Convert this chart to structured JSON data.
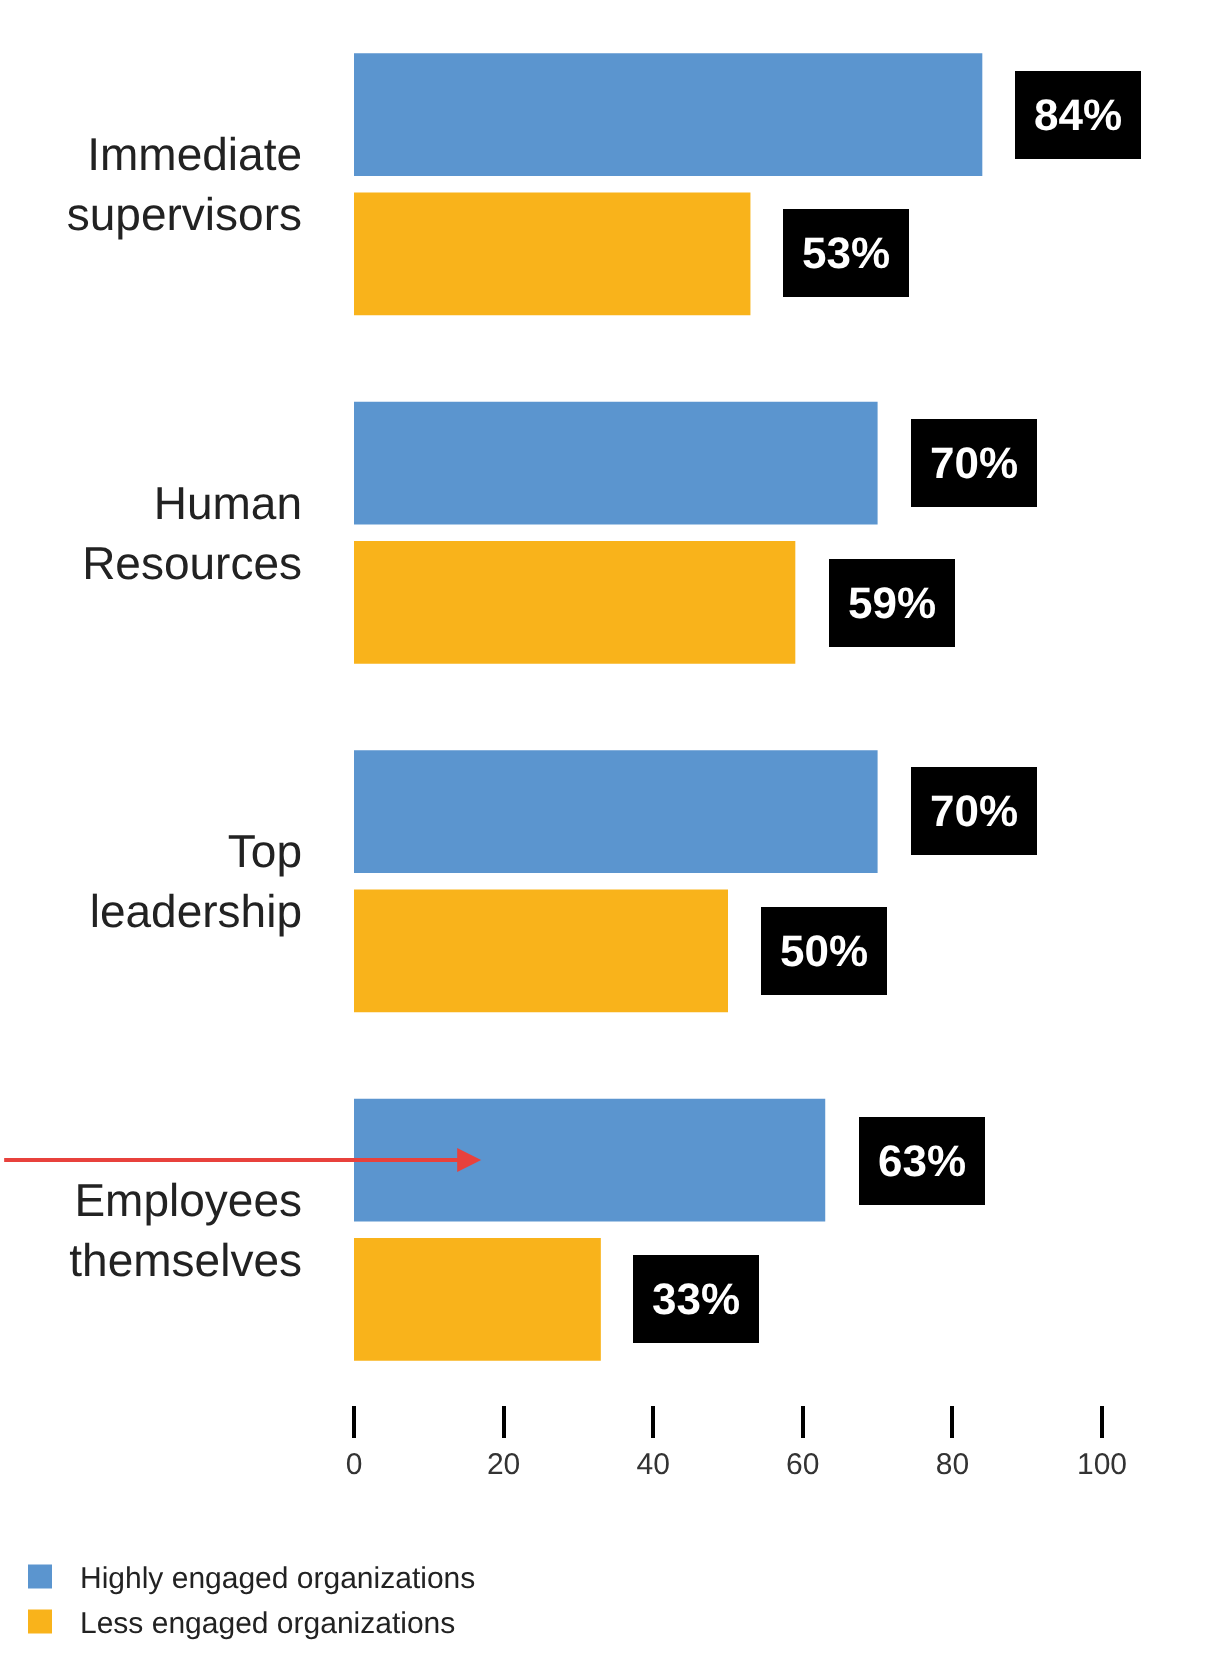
{
  "chart_data": {
    "type": "bar",
    "orientation": "horizontal",
    "categories": [
      "Immediate\nsupervisors",
      "Human\nResources",
      "Top\nleadership",
      "Employees\nthemselves"
    ],
    "series": [
      {
        "name": "Highly engaged organizations",
        "color": "#5b95cf",
        "values": [
          84,
          70,
          70,
          63
        ],
        "value_labels": [
          "84%",
          "70%",
          "70%",
          "63%"
        ]
      },
      {
        "name": "Less engaged organizations",
        "color": "#f9b31b",
        "values": [
          53,
          59,
          50,
          33
        ],
        "value_labels": [
          "53%",
          "59%",
          "50%",
          "33%"
        ]
      }
    ],
    "xlim": [
      0,
      100
    ],
    "xticks": [
      0,
      20,
      40,
      60,
      80,
      100
    ],
    "legend": "bottom"
  }
}
